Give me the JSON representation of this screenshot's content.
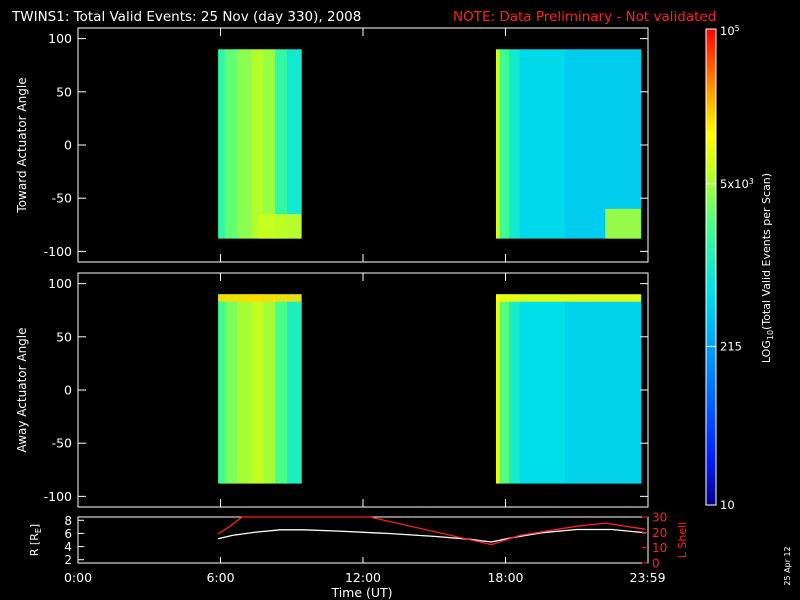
{
  "title": {
    "main": "TWINS1: Total Valid Events: 25 Nov (day 330), 2008",
    "note": "NOTE: Data Preliminary - Not validated"
  },
  "colors": {
    "background": "#000000",
    "axes": "#ffffff",
    "note": "#ff2020",
    "lshell": "#ff2020",
    "r_line": "#ffffff"
  },
  "panels": {
    "toward": {
      "ylabel": "Toward Actuator Angle"
    },
    "away": {
      "ylabel": "Away Actuator Angle"
    },
    "orbit": {
      "ylabel": "R [R",
      "ylabel_sub": "E",
      "ylabel_end": "]",
      "ylabel_right": "L Shell"
    }
  },
  "xaxis": {
    "label": "Time (UT)",
    "ticks": [
      "0:00",
      "6:00",
      "12:00",
      "18:00",
      "23:59"
    ]
  },
  "colorbar": {
    "label": "LOG",
    "label_sub": "10",
    "label_rest": "(Total Valid Events per Scan)",
    "ticks": [
      {
        "base": "10",
        "exp": "5",
        "value": 100000
      },
      {
        "base": "5x10",
        "exp": "3",
        "value": 5000
      },
      {
        "base": "215",
        "exp": "",
        "value": 215
      },
      {
        "base": "10",
        "exp": "",
        "value": 10
      }
    ]
  },
  "datestamp": "25 Apr 12",
  "chart_data": [
    {
      "type": "heatmap",
      "title": "TWINS1: Total Valid Events: 25 Nov (day 330), 2008",
      "xlabel": "Time (UT)",
      "ylabel": "Toward Actuator Angle",
      "xlim": [
        0,
        24
      ],
      "ylim": [
        -110,
        110
      ],
      "yticks": [
        100,
        50,
        0,
        -50,
        -100
      ],
      "scale": "log",
      "crange": [
        10,
        100000
      ],
      "angle_range": [
        -88,
        90
      ],
      "blocks": [
        {
          "start_hr": 5.9,
          "end_hr": 9.4,
          "bands": [
            {
              "from": 5.9,
              "to": 6.2,
              "log": 3.2
            },
            {
              "from": 6.2,
              "to": 6.7,
              "log": 3.45
            },
            {
              "from": 6.7,
              "to": 7.3,
              "log": 3.6
            },
            {
              "from": 7.3,
              "to": 7.8,
              "log": 3.75
            },
            {
              "from": 7.8,
              "to": 8.3,
              "log": 3.65
            },
            {
              "from": 8.3,
              "to": 8.8,
              "log": 3.2
            },
            {
              "from": 8.8,
              "to": 9.4,
              "log": 2.95
            }
          ]
        },
        {
          "start_hr": 17.6,
          "end_hr": 23.7,
          "bands": [
            {
              "from": 17.6,
              "to": 17.75,
              "log": 3.9
            },
            {
              "from": 17.75,
              "to": 18.15,
              "log": 3.3
            },
            {
              "from": 18.15,
              "to": 18.6,
              "log": 2.95
            },
            {
              "from": 18.6,
              "to": 20.5,
              "log": 2.75
            },
            {
              "from": 20.5,
              "to": 23.7,
              "log": 2.65
            }
          ]
        }
      ],
      "features": [
        {
          "desc": "enhanced counts near -75 to -88 deg",
          "from_hr": 7.6,
          "to_hr": 9.4,
          "angle": [
            -88,
            -65
          ],
          "log": 3.85
        },
        {
          "desc": "enhanced counts near -80 deg late",
          "from_hr": 22.2,
          "to_hr": 23.7,
          "angle": [
            -88,
            -60
          ],
          "log": 3.7
        }
      ]
    },
    {
      "type": "heatmap",
      "xlabel": "Time (UT)",
      "ylabel": "Away Actuator Angle",
      "xlim": [
        0,
        24
      ],
      "ylim": [
        -110,
        110
      ],
      "yticks": [
        100,
        50,
        0,
        -50,
        -100
      ],
      "scale": "log",
      "crange": [
        10,
        100000
      ],
      "angle_range": [
        -88,
        90
      ],
      "blocks": [
        {
          "start_hr": 5.9,
          "end_hr": 9.4,
          "bands": [
            {
              "from": 5.9,
              "to": 6.2,
              "log": 3.3
            },
            {
              "from": 6.2,
              "to": 6.7,
              "log": 3.55
            },
            {
              "from": 6.7,
              "to": 7.3,
              "log": 3.7
            },
            {
              "from": 7.3,
              "to": 7.8,
              "log": 3.8
            },
            {
              "from": 7.8,
              "to": 8.3,
              "log": 3.7
            },
            {
              "from": 8.3,
              "to": 8.8,
              "log": 3.35
            },
            {
              "from": 8.8,
              "to": 9.4,
              "log": 3.05
            }
          ]
        },
        {
          "start_hr": 17.6,
          "end_hr": 23.7,
          "bands": [
            {
              "from": 17.6,
              "to": 17.75,
              "log": 4.0
            },
            {
              "from": 17.75,
              "to": 18.15,
              "log": 3.4
            },
            {
              "from": 18.15,
              "to": 18.6,
              "log": 3.0
            },
            {
              "from": 18.6,
              "to": 20.5,
              "log": 2.8
            },
            {
              "from": 20.5,
              "to": 23.7,
              "log": 2.7
            }
          ]
        }
      ],
      "features": [
        {
          "desc": "bright strip near 90 deg",
          "from_hr": 5.9,
          "to_hr": 9.4,
          "angle": [
            83,
            90
          ],
          "log": 4.25
        },
        {
          "desc": "bright strip near 90 deg",
          "from_hr": 17.6,
          "to_hr": 23.7,
          "angle": [
            83,
            90
          ],
          "log": 4.1
        }
      ]
    },
    {
      "type": "line",
      "xlabel": "Time (UT)",
      "xlim": [
        0,
        24
      ],
      "series": [
        {
          "name": "R [RE]",
          "axis": "left",
          "ylim": [
            1.5,
            8.5
          ],
          "yticks": [
            2,
            4,
            6,
            8
          ],
          "x": [
            5.9,
            6.5,
            7.5,
            8.5,
            9.5,
            11,
            13,
            15,
            16.5,
            17.4,
            18.2,
            19.5,
            21,
            22.5,
            23.9
          ],
          "y": [
            5.2,
            5.7,
            6.2,
            6.55,
            6.55,
            6.35,
            6.0,
            5.55,
            5.1,
            4.7,
            5.3,
            6.1,
            6.6,
            6.6,
            6.1
          ]
        },
        {
          "name": "L Shell",
          "axis": "right",
          "ylim": [
            0,
            30
          ],
          "yticks": [
            0,
            10,
            20,
            30
          ],
          "x": [
            5.9,
            6.4,
            6.9,
            7.2,
            12.3,
            17.4,
            18.6,
            21.0,
            22.2,
            23.9
          ],
          "y": [
            19,
            24,
            30,
            31,
            31,
            12,
            18,
            24,
            26,
            22
          ]
        }
      ]
    }
  ]
}
